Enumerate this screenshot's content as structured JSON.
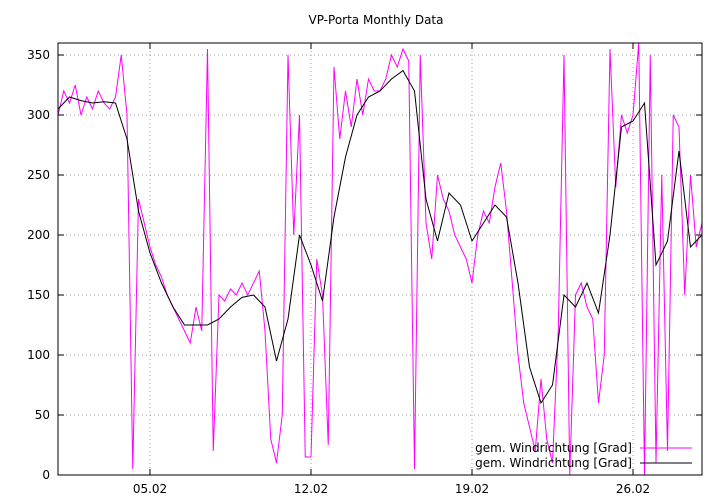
{
  "chart_data": {
    "type": "line",
    "title": "VP-Porta Monthly Data",
    "xlim": [
      1,
      29
    ],
    "ylim": [
      0,
      360
    ],
    "xticks": [
      {
        "value": 5,
        "label": "05.02"
      },
      {
        "value": 12,
        "label": "12.02"
      },
      {
        "value": 19,
        "label": "19.02"
      },
      {
        "value": 26,
        "label": "26.02"
      }
    ],
    "yticks": [
      0,
      50,
      100,
      150,
      200,
      250,
      300,
      350
    ],
    "grid": true,
    "legend": "bottom-right",
    "series": [
      {
        "name": "gem. Windrichtung [Grad]",
        "color": "#ff00ff",
        "x": [
          1,
          1.25,
          1.5,
          1.75,
          2,
          2.25,
          2.5,
          2.75,
          3,
          3.25,
          3.5,
          3.75,
          4,
          4.25,
          4.5,
          4.75,
          5,
          5.25,
          5.5,
          5.75,
          6,
          6.25,
          6.5,
          6.75,
          7,
          7.25,
          7.5,
          7.75,
          8,
          8.25,
          8.5,
          8.75,
          9,
          9.25,
          9.5,
          9.75,
          10,
          10.25,
          10.5,
          10.75,
          11,
          11.25,
          11.5,
          11.75,
          12,
          12.25,
          12.5,
          12.75,
          13,
          13.25,
          13.5,
          13.75,
          14,
          14.25,
          14.5,
          14.75,
          15,
          15.25,
          15.5,
          15.75,
          16,
          16.25,
          16.5,
          16.75,
          17,
          17.25,
          17.5,
          17.75,
          18,
          18.25,
          18.5,
          18.75,
          19,
          19.25,
          19.5,
          19.75,
          20,
          20.25,
          20.5,
          20.75,
          21,
          21.25,
          21.5,
          21.75,
          22,
          22.25,
          22.5,
          22.75,
          23,
          23.25,
          23.5,
          23.75,
          24,
          24.25,
          24.5,
          24.75,
          25,
          25.25,
          25.5,
          25.75,
          26,
          26.25,
          26.5,
          26.75,
          27,
          27.25,
          27.5,
          27.75,
          28,
          28.25,
          28.5,
          28.75,
          29
        ],
        "values": [
          300,
          320,
          310,
          325,
          300,
          315,
          305,
          320,
          310,
          305,
          315,
          350,
          300,
          5,
          230,
          210,
          190,
          175,
          165,
          150,
          140,
          130,
          120,
          110,
          140,
          120,
          355,
          20,
          150,
          145,
          155,
          150,
          160,
          150,
          160,
          170,
          120,
          30,
          10,
          50,
          350,
          200,
          300,
          15,
          15,
          180,
          150,
          25,
          340,
          280,
          320,
          290,
          330,
          300,
          330,
          320,
          320,
          330,
          350,
          340,
          355,
          345,
          5,
          350,
          210,
          180,
          250,
          230,
          220,
          200,
          190,
          180,
          160,
          200,
          220,
          210,
          240,
          260,
          220,
          160,
          100,
          60,
          40,
          20,
          80,
          30,
          10,
          120,
          350,
          0,
          150,
          160,
          140,
          130,
          60,
          100,
          355,
          240,
          300,
          285,
          300,
          360,
          0,
          350,
          10,
          250,
          20,
          300,
          290,
          150,
          250,
          190,
          210
        ]
      },
      {
        "name": "gem. Windrichtung [Grad]",
        "color": "#000000",
        "x": [
          1,
          1.5,
          2,
          2.5,
          3,
          3.5,
          4,
          4.5,
          5,
          5.5,
          6,
          6.5,
          7,
          7.5,
          8,
          8.5,
          9,
          9.5,
          10,
          10.5,
          11,
          11.5,
          12,
          12.5,
          13,
          13.5,
          14,
          14.5,
          15,
          15.5,
          16,
          16.5,
          17,
          17.5,
          18,
          18.5,
          19,
          19.5,
          20,
          20.5,
          21,
          21.5,
          22,
          22.5,
          23,
          23.5,
          24,
          24.5,
          25,
          25.5,
          26,
          26.5,
          27,
          27.5,
          28,
          28.5,
          29
        ],
        "values": [
          305,
          315,
          312,
          310,
          311,
          310,
          280,
          220,
          185,
          160,
          140,
          125,
          125,
          125,
          130,
          140,
          148,
          150,
          140,
          95,
          130,
          200,
          175,
          145,
          215,
          265,
          300,
          315,
          320,
          330,
          337,
          320,
          230,
          195,
          235,
          225,
          195,
          210,
          225,
          215,
          160,
          90,
          60,
          75,
          150,
          140,
          160,
          135,
          200,
          290,
          295,
          310,
          175,
          195,
          270,
          190,
          200
        ]
      }
    ]
  }
}
